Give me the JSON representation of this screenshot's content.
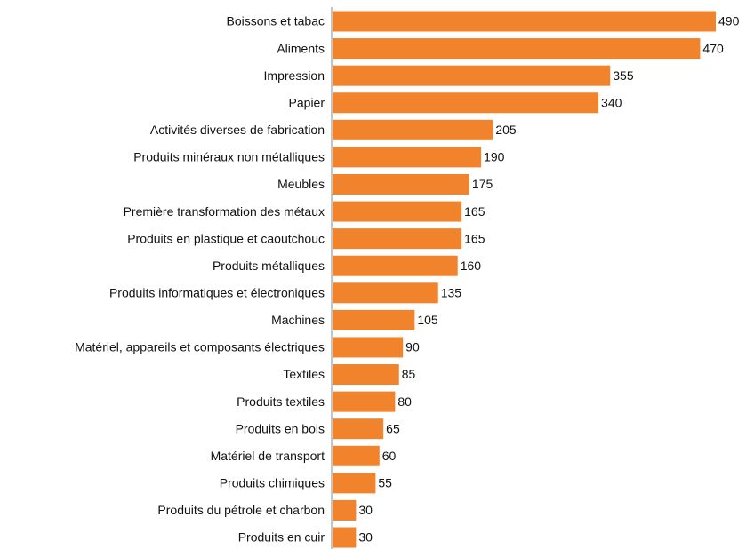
{
  "chart_data": {
    "type": "bar",
    "orientation": "horizontal",
    "categories": [
      "Boissons et tabac",
      "Aliments",
      "Impression",
      "Papier",
      "Activités diverses de fabrication",
      "Produits minéraux non métalliques",
      "Meubles",
      "Première transformation des métaux",
      "Produits en plastique et caoutchouc",
      "Produits métalliques",
      "Produits informatiques et électroniques",
      "Machines",
      "Matériel, appareils et composants électriques",
      "Textiles",
      "Produits textiles",
      "Produits en bois",
      "Matériel de transport",
      "Produits chimiques",
      "Produits du pétrole et charbon",
      "Produits en cuir"
    ],
    "values": [
      490,
      470,
      355,
      340,
      205,
      190,
      175,
      165,
      165,
      160,
      135,
      105,
      90,
      85,
      80,
      65,
      60,
      55,
      30,
      30
    ],
    "color": "#f0832b"
  }
}
